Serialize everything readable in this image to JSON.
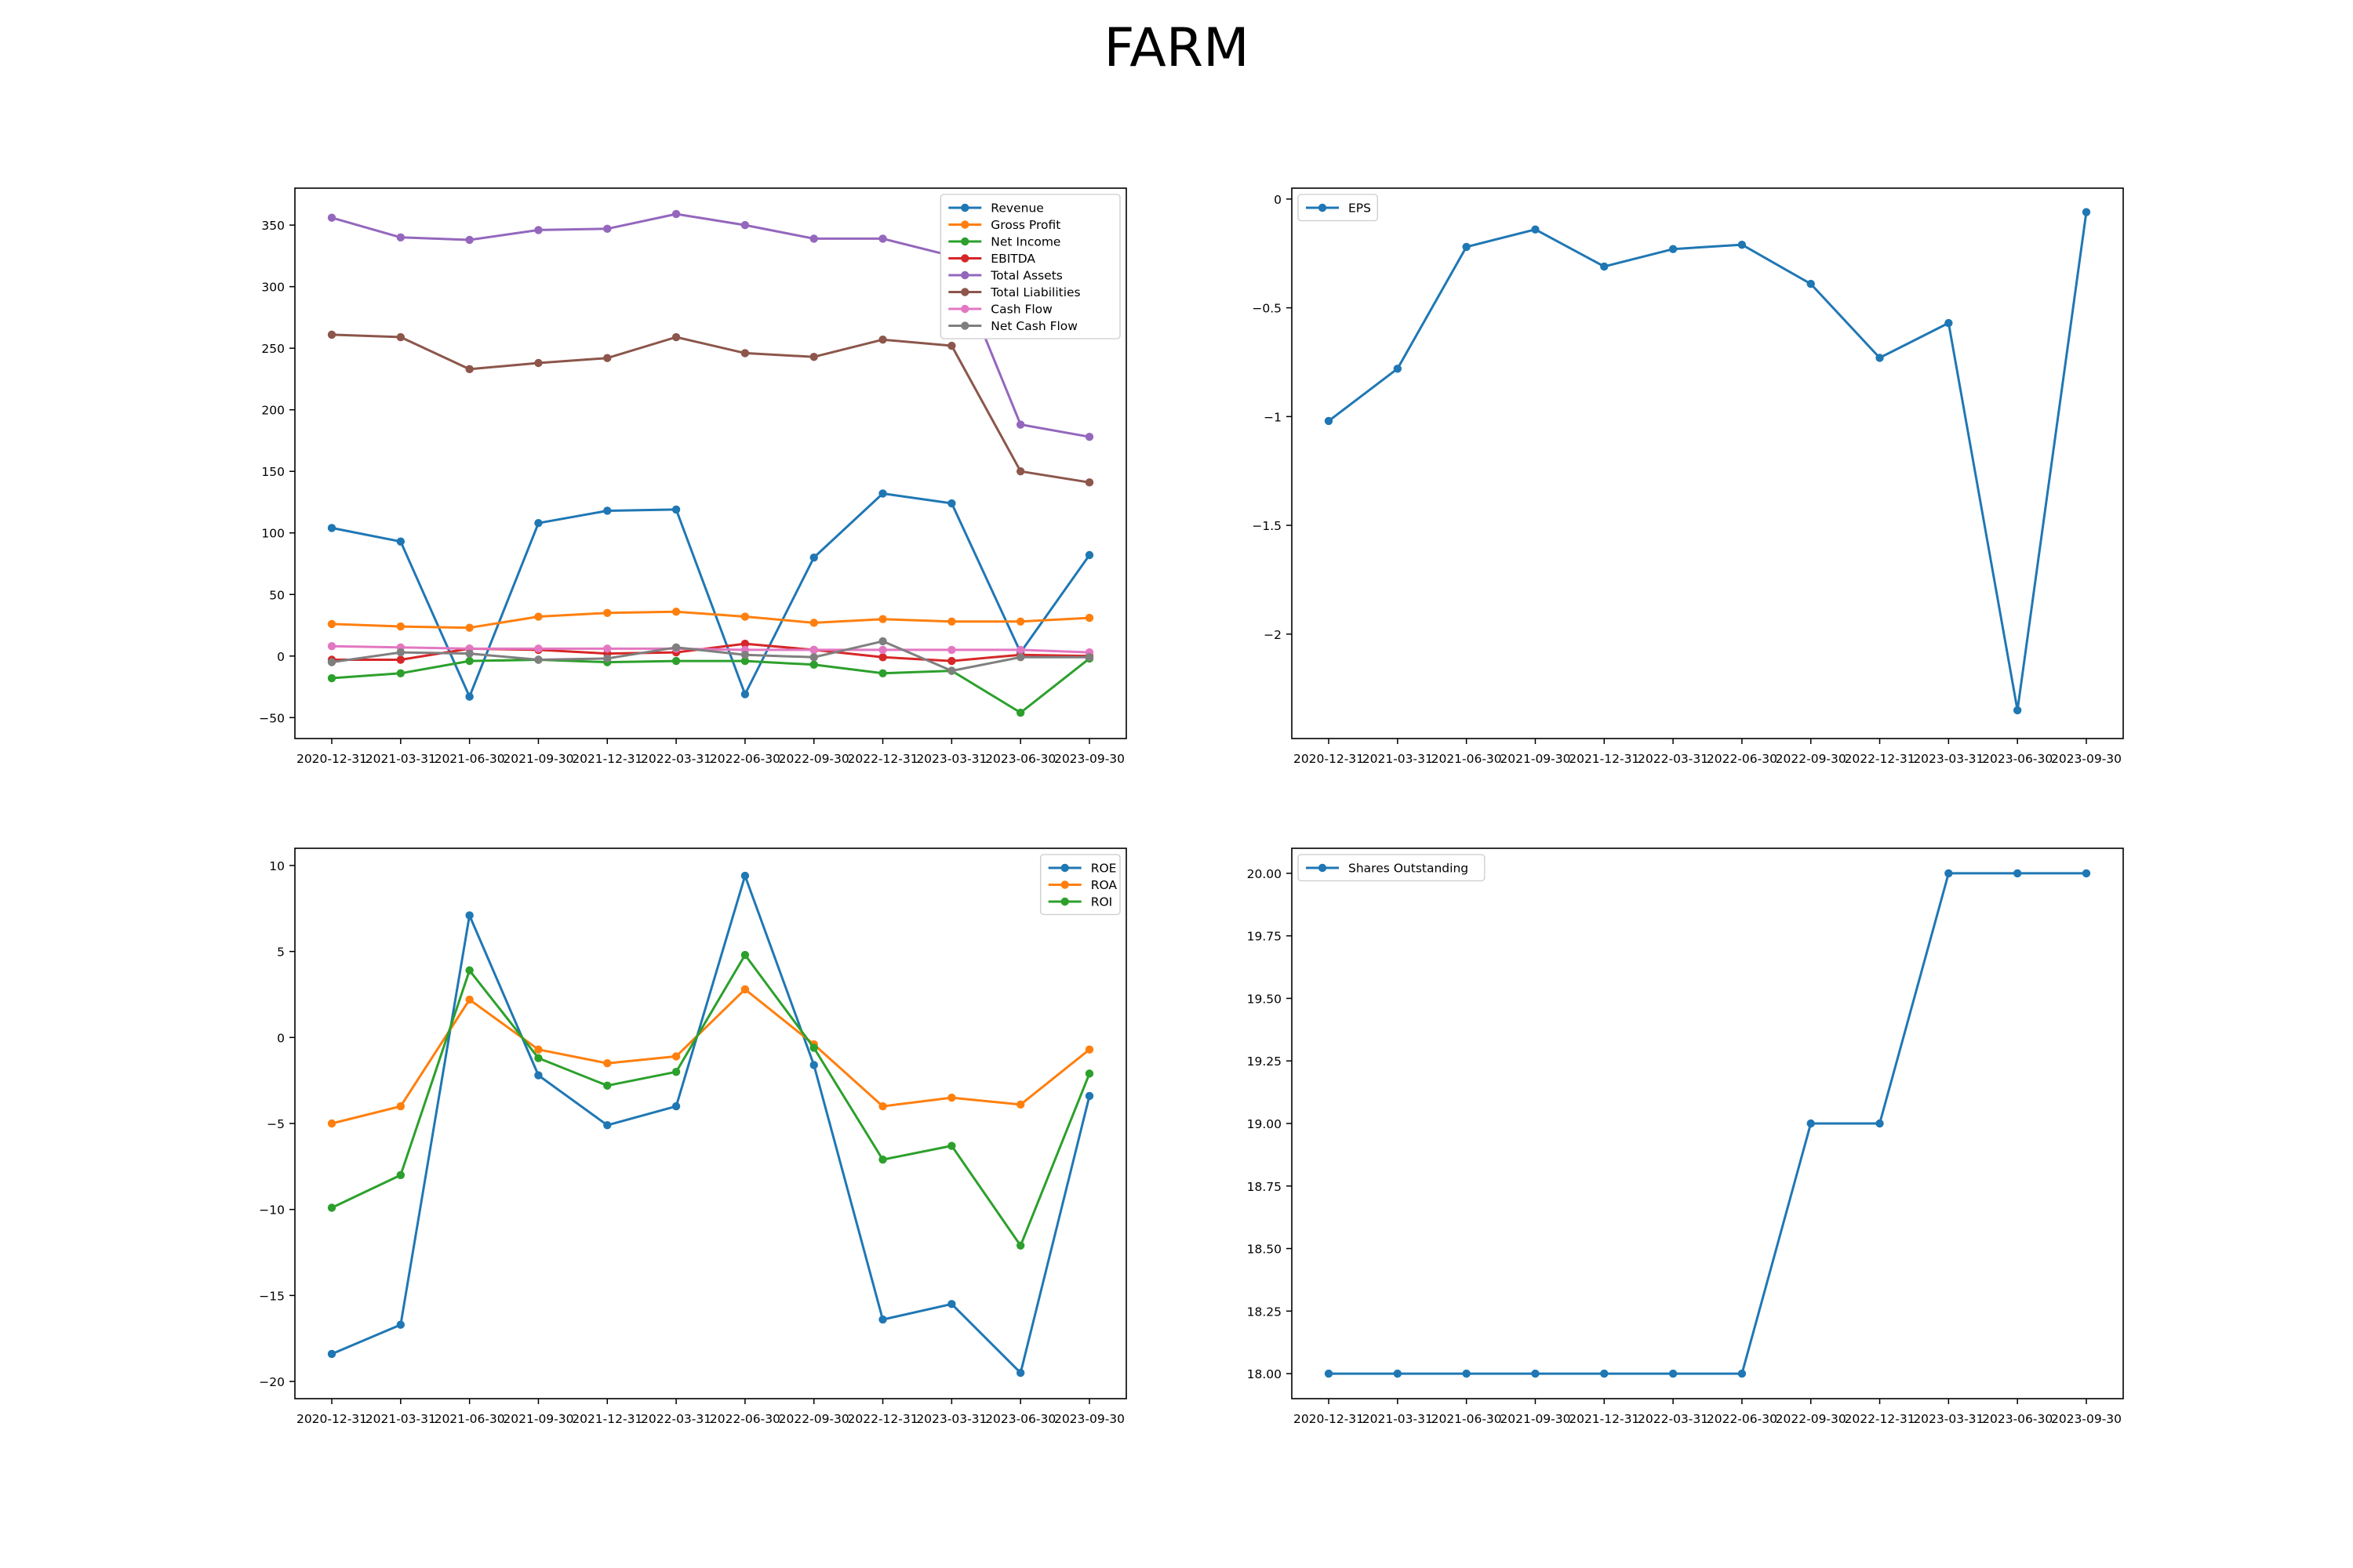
{
  "page_title": "FARM",
  "colors": {
    "c0": "#1f77b4",
    "c1": "#ff7f0e",
    "c2": "#2ca02c",
    "c3": "#d62728",
    "c4": "#9467bd",
    "c5": "#8c564b",
    "c6": "#e377c2",
    "c7": "#7f7f7f"
  },
  "chart_data": [
    {
      "type": "line",
      "x": [
        "2020-12-31",
        "2021-03-31",
        "2021-06-30",
        "2021-09-30",
        "2021-12-31",
        "2022-03-31",
        "2022-06-30",
        "2022-09-30",
        "2022-12-31",
        "2023-03-31",
        "2023-06-30",
        "2023-09-30"
      ],
      "ylim": [
        -67,
        380
      ],
      "yticks": [
        -50,
        0,
        50,
        100,
        150,
        200,
        250,
        300,
        350
      ],
      "grid": false,
      "legend": "top-right",
      "series": [
        {
          "name": "Revenue",
          "values": [
            104,
            93,
            -33,
            108,
            118,
            119,
            -31,
            80,
            132,
            124,
            3,
            82
          ]
        },
        {
          "name": "Gross Profit",
          "values": [
            26,
            24,
            23,
            32,
            35,
            36,
            32,
            27,
            30,
            28,
            28,
            31
          ]
        },
        {
          "name": "Net Income",
          "values": [
            -18,
            -14,
            -4,
            -3,
            -5,
            -4,
            -4,
            -7,
            -14,
            -12,
            -46,
            -2
          ]
        },
        {
          "name": "EBITDA",
          "values": [
            -3,
            -3,
            6,
            5,
            2,
            3,
            10,
            5,
            -1,
            -4,
            1,
            0
          ]
        },
        {
          "name": "Total Assets",
          "values": [
            356,
            340,
            338,
            346,
            347,
            359,
            350,
            339,
            339,
            325,
            188,
            178
          ]
        },
        {
          "name": "Total Liabilities",
          "values": [
            261,
            259,
            233,
            238,
            242,
            259,
            246,
            243,
            257,
            252,
            150,
            141
          ]
        },
        {
          "name": "Cash Flow",
          "values": [
            8,
            7,
            6,
            6,
            6,
            6,
            5,
            5,
            5,
            5,
            5,
            3
          ]
        },
        {
          "name": "Net Cash Flow",
          "values": [
            -5,
            3,
            2,
            -3,
            -2,
            7,
            1,
            -1,
            12,
            -12,
            -1,
            -1
          ]
        }
      ]
    },
    {
      "type": "line",
      "x": [
        "2020-12-31",
        "2021-03-31",
        "2021-06-30",
        "2021-09-30",
        "2021-12-31",
        "2022-03-31",
        "2022-06-30",
        "2022-09-30",
        "2022-12-31",
        "2023-03-31",
        "2023-06-30",
        "2023-09-30"
      ],
      "ylim": [
        -2.48,
        0.05
      ],
      "yticks": [
        -2.0,
        -1.5,
        -1.0,
        -0.5,
        0.0
      ],
      "grid": false,
      "legend": "top-left",
      "series": [
        {
          "name": "EPS",
          "values": [
            -1.02,
            -0.78,
            -0.22,
            -0.14,
            -0.31,
            -0.23,
            -0.21,
            -0.39,
            -0.73,
            -0.57,
            -2.35,
            -0.06
          ]
        }
      ]
    },
    {
      "type": "line",
      "x": [
        "2020-12-31",
        "2021-03-31",
        "2021-06-30",
        "2021-09-30",
        "2021-12-31",
        "2022-03-31",
        "2022-06-30",
        "2022-09-30",
        "2022-12-31",
        "2023-03-31",
        "2023-06-30",
        "2023-09-30"
      ],
      "ylim": [
        -21,
        11
      ],
      "yticks": [
        -20,
        -15,
        -10,
        -5,
        0,
        5,
        10
      ],
      "grid": false,
      "legend": "top-right",
      "series": [
        {
          "name": "ROE",
          "values": [
            -18.4,
            -16.7,
            7.1,
            -2.2,
            -5.1,
            -4.0,
            9.4,
            -1.6,
            -16.4,
            -15.5,
            -19.5,
            -3.4
          ]
        },
        {
          "name": "ROA",
          "values": [
            -5.0,
            -4.0,
            2.2,
            -0.7,
            -1.5,
            -1.1,
            2.8,
            -0.4,
            -4.0,
            -3.5,
            -3.9,
            -0.7
          ]
        },
        {
          "name": "ROI",
          "values": [
            -9.9,
            -8.0,
            3.9,
            -1.2,
            -2.8,
            -2.0,
            4.8,
            -0.6,
            -7.1,
            -6.3,
            -12.1,
            -2.1
          ]
        }
      ]
    },
    {
      "type": "line",
      "x": [
        "2020-12-31",
        "2021-03-31",
        "2021-06-30",
        "2021-09-30",
        "2021-12-31",
        "2022-03-31",
        "2022-06-30",
        "2022-09-30",
        "2022-12-31",
        "2023-03-31",
        "2023-06-30",
        "2023-09-30"
      ],
      "ylim": [
        17.9,
        20.1
      ],
      "yticks": [
        18.0,
        18.25,
        18.5,
        18.75,
        19.0,
        19.25,
        19.5,
        19.75,
        20.0
      ],
      "ytick_format": "fixed2",
      "grid": false,
      "legend": "top-left",
      "series": [
        {
          "name": "Shares Outstanding",
          "values": [
            18,
            18,
            18,
            18,
            18,
            18,
            18,
            19,
            19,
            20,
            20,
            20
          ]
        }
      ]
    }
  ]
}
